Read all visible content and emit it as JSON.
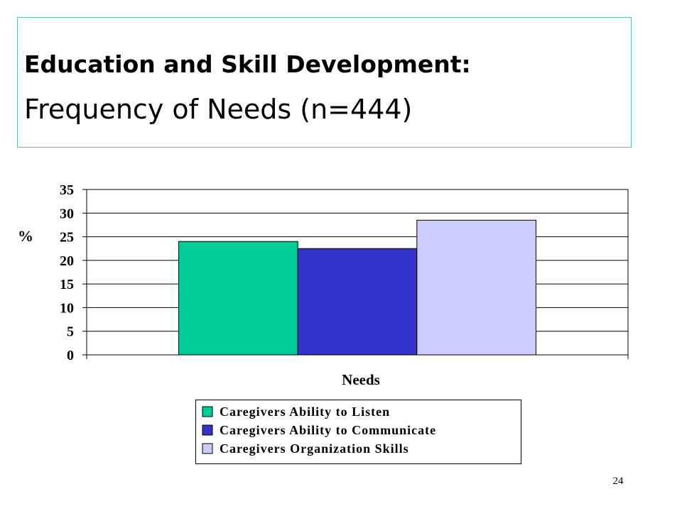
{
  "chart_data": {
    "type": "bar",
    "title": "Education and Skill Development:",
    "subtitle": "Frequency of Needs (n=444)",
    "x_label": "Needs",
    "y_label": "%",
    "categories": [
      null
    ],
    "series": [
      {
        "name": "Caregivers Ability to Listen",
        "color": "#00cc99",
        "values": [
          24
        ]
      },
      {
        "name": "Caregivers Ability to Communicate",
        "color": "#3333cc",
        "values": [
          22.5
        ]
      },
      {
        "name": "Caregivers Organization Skills",
        "color": "#ccccff",
        "values": [
          28.5
        ]
      }
    ],
    "ylim": [
      0,
      35
    ],
    "yticks": [
      0,
      5,
      10,
      15,
      20,
      25,
      30,
      35
    ],
    "grid": true,
    "legend": "bottom"
  },
  "page_number": "24"
}
